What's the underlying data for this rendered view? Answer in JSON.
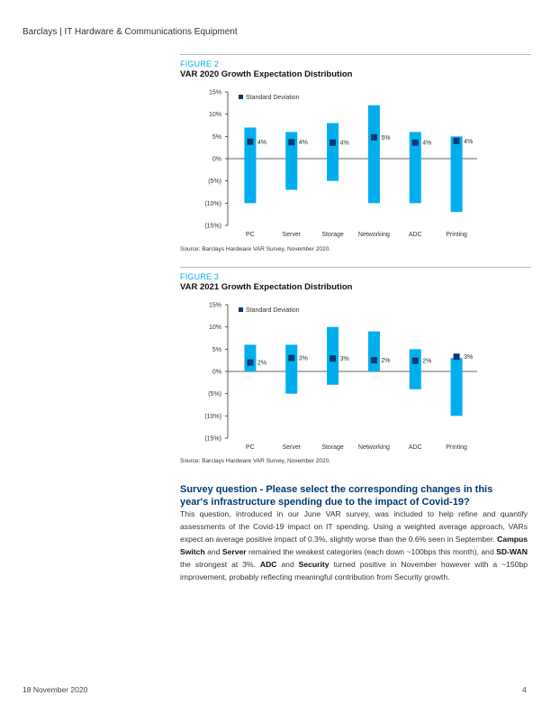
{
  "header": {
    "title": "Barclays | IT Hardware & Communications Equipment"
  },
  "figures": [
    {
      "label": "FIGURE 2",
      "title": "VAR 2020 Growth Expectation Distribution",
      "source": "Source: Barclays Hardware VAR Survey, November 2020."
    },
    {
      "label": "FIGURE 3",
      "title": "VAR 2021 Growth Expectation Distribution",
      "source": "Source: Barclays Hardware VAR Survey, November 2020."
    }
  ],
  "chart_data": [
    {
      "type": "bar",
      "title": "VAR 2020 Growth Expectation Distribution",
      "categories": [
        "PC",
        "Server",
        "Storage",
        "Networking",
        "ADC",
        "Printing"
      ],
      "ylim": [
        -15,
        15
      ],
      "yticks": [
        15,
        10,
        5,
        0,
        -5,
        -10,
        -15
      ],
      "ytick_labels": [
        "15%",
        "10%",
        "5%",
        "0%",
        "(5%)",
        "(10%)",
        "(15%)"
      ],
      "range_low": [
        -10,
        -7,
        -5,
        -10,
        -10,
        -12
      ],
      "range_high": [
        7,
        6,
        8,
        12,
        6,
        5
      ],
      "series": [
        {
          "name": "Standard Deviation",
          "values": [
            4,
            4,
            4,
            5,
            4,
            4
          ],
          "labels": [
            "4%",
            "4%",
            "4%",
            "5%",
            "4%",
            "4%"
          ]
        }
      ],
      "marker_y": [
        3.8,
        3.7,
        3.6,
        4.8,
        3.6,
        4.0
      ],
      "legend": "Standard Deviation",
      "legend_position": "top-left",
      "bar_color": "#00aeef",
      "marker_color": "#003a70"
    },
    {
      "type": "bar",
      "title": "VAR 2021 Growth Expectation Distribution",
      "categories": [
        "PC",
        "Server",
        "Storage",
        "Networking",
        "ADC",
        "Printing"
      ],
      "ylim": [
        -15,
        15
      ],
      "yticks": [
        15,
        10,
        5,
        0,
        -5,
        -10,
        -15
      ],
      "ytick_labels": [
        "15%",
        "10%",
        "5%",
        "0%",
        "(5%)",
        "(10%)",
        "(15%)"
      ],
      "range_low": [
        0,
        -5,
        -3,
        0,
        -4,
        -10
      ],
      "range_high": [
        6,
        6,
        10,
        9,
        5,
        3
      ],
      "series": [
        {
          "name": "Standard Deviation",
          "values": [
            2,
            3,
            3,
            2,
            2,
            3
          ],
          "labels": [
            "2%",
            "3%",
            "3%",
            "2%",
            "2%",
            "3%"
          ]
        }
      ],
      "marker_y": [
        2.0,
        3.0,
        2.9,
        2.5,
        2.4,
        3.3
      ],
      "legend": "Standard Deviation",
      "legend_position": "top-left",
      "bar_color": "#00aeef",
      "marker_color": "#003a70"
    }
  ],
  "section": {
    "heading": "Survey question - Please select the corresponding changes in this year's infrastructure spending due to the impact of Covid-19?",
    "p1": "This question, introduced in our June VAR survey, was included to help refine and quantify assessments of the Covid-19 impact on IT spending. Using a weighted average approach, VARs expect an average positive impact of 0.3%, slightly worse than the 0.6% seen in September. ",
    "b1": "Campus Switch",
    "t2": " and ",
    "b2": "Server",
    "t3": " remained the weakest categories (each down ~100bps this month), and ",
    "b3": "SD-WAN",
    "t4": " the strongest at 3%. ",
    "b4": "ADC",
    "t5": " and ",
    "b5": "Security",
    "t6": " turned positive in November however with a ~150bp improvement, probably reflecting meaningful contribution from Security growth."
  },
  "footer": {
    "date": "18 November 2020",
    "page": "4"
  }
}
